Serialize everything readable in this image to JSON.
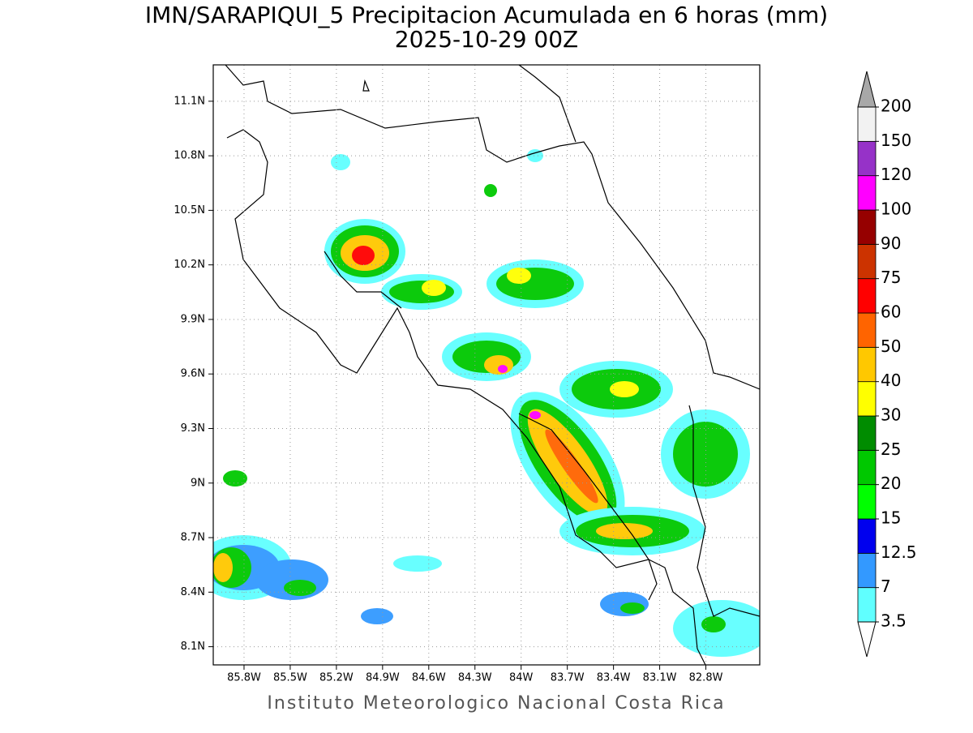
{
  "title": "IMN/SARAPIQUI_5 Precipitacion Acumulada en 6 horas (mm)",
  "subtitle": "2025-10-29 00Z",
  "footer": "Instituto Meteorologico Nacional Costa Rica",
  "map": {
    "xlim": [
      -86.0,
      -82.45
    ],
    "ylim": [
      8.0,
      11.3
    ],
    "grid": true,
    "xticks": [
      {
        "value": -85.8,
        "label": "85.8W"
      },
      {
        "value": -85.5,
        "label": "85.5W"
      },
      {
        "value": -85.2,
        "label": "85.2W"
      },
      {
        "value": -84.9,
        "label": "84.9W"
      },
      {
        "value": -84.6,
        "label": "84.6W"
      },
      {
        "value": -84.3,
        "label": "84.3W"
      },
      {
        "value": -84.0,
        "label": "84W"
      },
      {
        "value": -83.7,
        "label": "83.7W"
      },
      {
        "value": -83.4,
        "label": "83.4W"
      },
      {
        "value": -83.1,
        "label": "83.1W"
      },
      {
        "value": -82.8,
        "label": "82.8W"
      }
    ],
    "yticks": [
      {
        "value": 8.1,
        "label": "8.1N"
      },
      {
        "value": 8.4,
        "label": "8.4N"
      },
      {
        "value": 8.7,
        "label": "8.7N"
      },
      {
        "value": 9.0,
        "label": "9N"
      },
      {
        "value": 9.3,
        "label": "9.3N"
      },
      {
        "value": 9.6,
        "label": "9.6N"
      },
      {
        "value": 9.9,
        "label": "9.9N"
      },
      {
        "value": 10.2,
        "label": "10.2N"
      },
      {
        "value": 10.5,
        "label": "10.5N"
      },
      {
        "value": 10.8,
        "label": "10.8N"
      },
      {
        "value": 11.1,
        "label": "11.1N"
      }
    ]
  },
  "colorbar": {
    "levels": [
      3.5,
      7,
      12.5,
      15,
      20,
      25,
      30,
      40,
      50,
      60,
      75,
      90,
      100,
      120,
      150,
      200
    ],
    "colors": [
      "#60ffff",
      "#3399ff",
      "#0000ee",
      "#00ff00",
      "#00c800",
      "#008c00",
      "#ffff00",
      "#ffc800",
      "#ff6400",
      "#ff0000",
      "#cc3300",
      "#960000",
      "#ff00ff",
      "#9632c8",
      "#f2f2f2"
    ],
    "under_color": "#ffffff",
    "over_color": "#a8a8a8"
  }
}
